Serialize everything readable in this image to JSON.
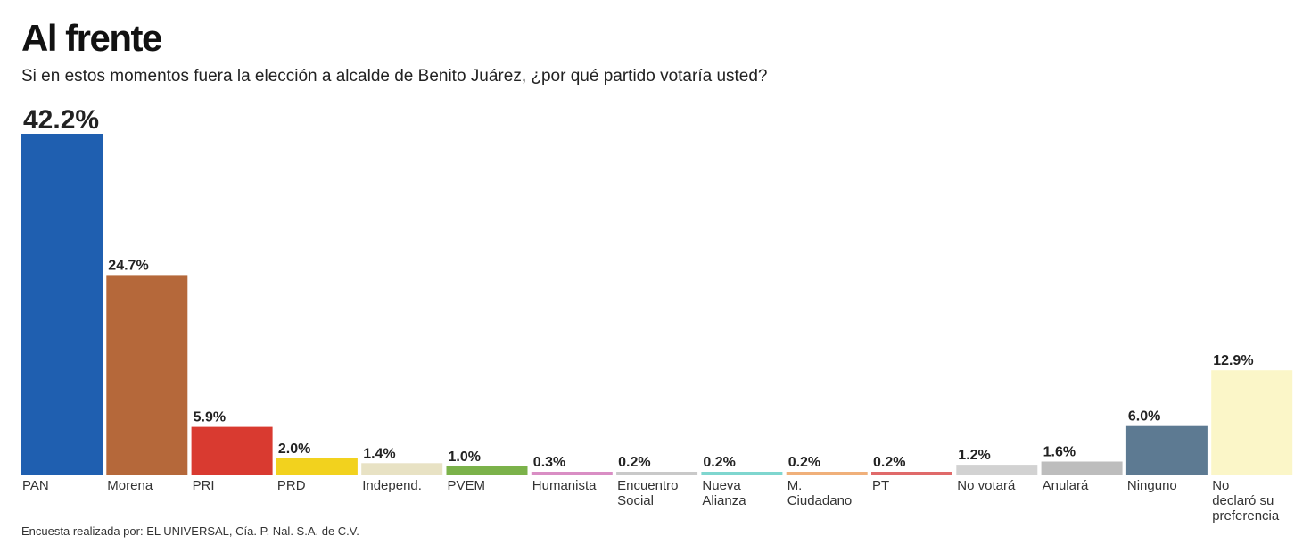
{
  "header": {
    "title": "Al frente",
    "subtitle": "Si en estos momentos fuera la elección a alcalde de Benito Juárez, ¿por qué partido votaría usted?"
  },
  "footer": {
    "source": "Encuesta realizada por: EL UNIVERSAL, Cía. P. Nal. S.A. de C.V."
  },
  "chart_data": {
    "type": "bar",
    "title": "Al frente",
    "xlabel": "",
    "ylabel": "",
    "ylim": [
      0,
      42.2
    ],
    "grid": false,
    "legend": "none",
    "categories": [
      "PAN",
      "Morena",
      "PRI",
      "PRD",
      "Independ.",
      "PVEM",
      "Humanista",
      "Encuentro Social",
      "Nueva Alianza",
      "M. Ciudadano",
      "PT",
      "No votará",
      "Anulará",
      "Ninguno",
      "No declaró su preferencia"
    ],
    "category_lines": [
      [
        "PAN"
      ],
      [
        "Morena"
      ],
      [
        "PRI"
      ],
      [
        "PRD"
      ],
      [
        "Independ."
      ],
      [
        "PVEM"
      ],
      [
        "Humanista"
      ],
      [
        "Encuentro",
        "Social"
      ],
      [
        "Nueva",
        "Alianza"
      ],
      [
        "M.",
        "Ciudadano"
      ],
      [
        "PT"
      ],
      [
        "No votará"
      ],
      [
        "Anulará"
      ],
      [
        "Ninguno"
      ],
      [
        "No",
        "declaró su",
        "preferencia"
      ]
    ],
    "values": [
      42.2,
      24.7,
      5.9,
      2.0,
      1.4,
      1.0,
      0.3,
      0.2,
      0.2,
      0.2,
      0.2,
      1.2,
      1.6,
      6.0,
      12.9
    ],
    "value_labels": [
      "42.2%",
      "24.7%",
      "5.9%",
      "2.0%",
      "1.4%",
      "1.0%",
      "0.3%",
      "0.2%",
      "0.2%",
      "0.2%",
      "0.2%",
      "1.2%",
      "1.6%",
      "6.0%",
      "12.9%"
    ],
    "colors": [
      "#1f5fb0",
      "#b5683a",
      "#d93a30",
      "#f2d21e",
      "#e8e2c4",
      "#7bb24a",
      "#d98ec4",
      "#c9c9c9",
      "#7fd6cf",
      "#f0b07a",
      "#e06a6a",
      "#d2d2d2",
      "#bdbdbd",
      "#5d7a92",
      "#fbf6c8"
    ]
  }
}
